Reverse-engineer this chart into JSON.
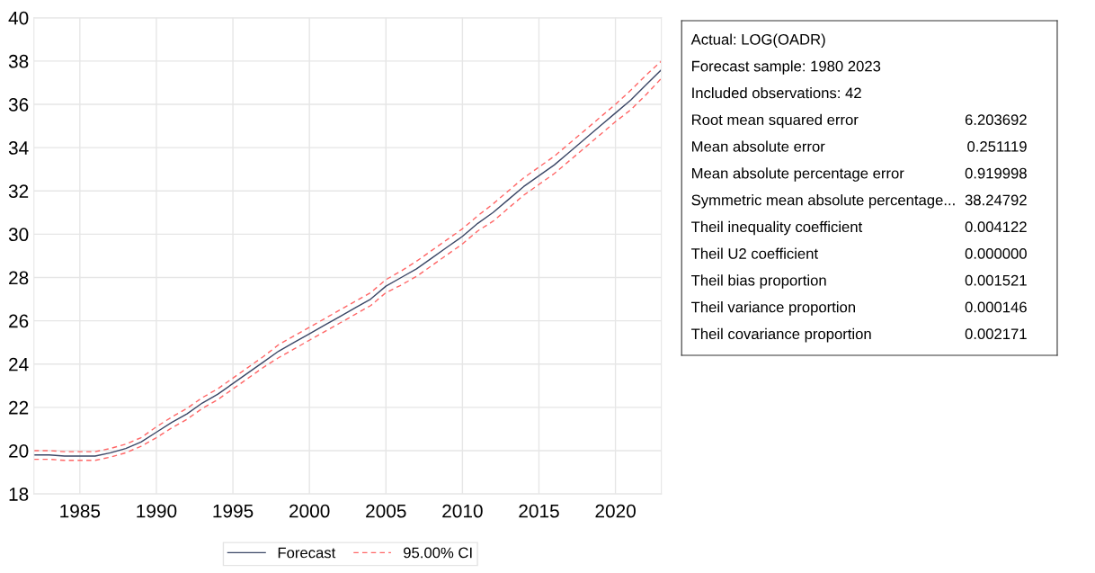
{
  "chart_data": [
    {
      "type": "line",
      "x": [
        1982,
        1983,
        1984,
        1985,
        1986,
        1987,
        1988,
        1989,
        1990,
        1991,
        1992,
        1993,
        1994,
        1995,
        1996,
        1997,
        1998,
        1999,
        2000,
        2001,
        2002,
        2003,
        2004,
        2005,
        2006,
        2007,
        2008,
        2009,
        2010,
        2011,
        2012,
        2013,
        2014,
        2015,
        2016,
        2017,
        2018,
        2019,
        2020,
        2021,
        2022,
        2023
      ],
      "series": [
        {
          "name": "Forecast",
          "color": "#3b4766",
          "line_style": "solid",
          "values": [
            19.8,
            19.8,
            19.75,
            19.75,
            19.75,
            19.9,
            20.1,
            20.4,
            20.85,
            21.3,
            21.7,
            22.2,
            22.6,
            23.1,
            23.6,
            24.1,
            24.6,
            25.0,
            25.4,
            25.8,
            26.2,
            26.6,
            27.0,
            27.6,
            28.0,
            28.4,
            28.9,
            29.4,
            29.9,
            30.5,
            31.0,
            31.6,
            32.2,
            32.7,
            33.2,
            33.8,
            34.4,
            35.0,
            35.6,
            36.2,
            36.9,
            37.6
          ]
        },
        {
          "name": "95.00% CI",
          "color": "#ff6666",
          "line_style": "dashed",
          "values": [
            20.0,
            20.0,
            19.95,
            19.95,
            19.95,
            20.1,
            20.3,
            20.6,
            21.1,
            21.55,
            21.95,
            22.45,
            22.85,
            23.35,
            23.85,
            24.35,
            24.9,
            25.3,
            25.7,
            26.1,
            26.5,
            26.9,
            27.3,
            27.9,
            28.3,
            28.75,
            29.25,
            29.75,
            30.25,
            30.85,
            31.4,
            32.0,
            32.6,
            33.1,
            33.6,
            34.2,
            34.8,
            35.4,
            36.0,
            36.65,
            37.35,
            38.0
          ]
        },
        {
          "color": "#ff6666",
          "line_style": "dashed",
          "values": [
            19.6,
            19.6,
            19.55,
            19.55,
            19.55,
            19.7,
            19.9,
            20.2,
            20.6,
            21.05,
            21.45,
            21.95,
            22.35,
            22.85,
            23.35,
            23.85,
            24.3,
            24.7,
            25.1,
            25.5,
            25.9,
            26.3,
            26.7,
            27.3,
            27.65,
            28.05,
            28.55,
            29.05,
            29.55,
            30.15,
            30.6,
            31.2,
            31.8,
            32.3,
            32.8,
            33.4,
            34.0,
            34.6,
            35.2,
            35.75,
            36.45,
            37.2
          ]
        }
      ],
      "xlim": [
        1982,
        2023
      ],
      "xticks": [
        1985,
        1990,
        1995,
        2000,
        2005,
        2010,
        2015,
        2020
      ],
      "ylim": [
        18,
        40
      ],
      "yticks": [
        18,
        20,
        22,
        24,
        26,
        28,
        30,
        32,
        34,
        36,
        38,
        40
      ],
      "grid": true,
      "legend": "bottom",
      "marker": "none"
    },
    {
      "type": "other",
      "annotations": [
        "Actual: LOG(OADR)",
        "Forecast sample: 1980 2023",
        "Included observations: 42",
        "Root mean squared error",
        "6.203692",
        "Mean absolute error",
        "0.251119",
        "Mean absolute percentage error",
        "0.919998",
        "Symmetric mean absolute percentage...",
        "38.24792",
        "Theil inequality coefficient",
        "0.004122",
        "Theil U2 coefficient",
        "0.000000",
        "Theil bias proportion",
        "0.001521",
        "Theil variance proportion",
        "0.000146",
        "Theil covariance proportion",
        "0.002171"
      ]
    }
  ]
}
